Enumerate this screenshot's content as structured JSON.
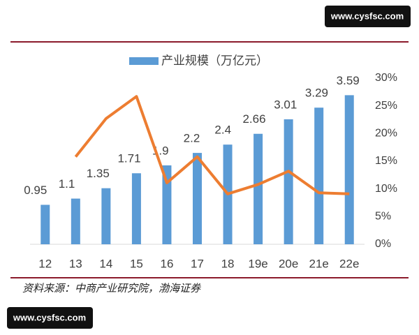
{
  "chart_data": {
    "type": "bar",
    "categories": [
      "12",
      "13",
      "14",
      "15",
      "16",
      "17",
      "18",
      "19e",
      "20e",
      "21e",
      "22e"
    ],
    "series": [
      {
        "name": "产业规模（万亿元）",
        "type": "bar",
        "color": "#5b9bd5",
        "values": [
          0.95,
          1.1,
          1.35,
          1.71,
          1.9,
          2.2,
          2.4,
          2.66,
          3.01,
          3.29,
          3.59
        ]
      },
      {
        "type": "line",
        "axis": "y2",
        "color": "#ed7d31",
        "values": [
          null,
          15.8,
          22.7,
          26.7,
          11.1,
          15.8,
          9.1,
          10.8,
          13.2,
          9.3,
          9.1
        ]
      }
    ],
    "ylim": [
      0,
      4
    ],
    "y2lim": [
      0,
      30
    ],
    "y2ticks": [
      {
        "value": 0,
        "label": "0%"
      },
      {
        "value": 5,
        "label": "5%"
      },
      {
        "value": 10,
        "label": "10%"
      },
      {
        "value": 15,
        "label": "15%"
      },
      {
        "value": 20,
        "label": "20%"
      },
      {
        "value": 25,
        "label": "25%"
      },
      {
        "value": 30,
        "label": "30%"
      }
    ],
    "legend": "top"
  },
  "source": "资料来源：中商产业研究院，渤海证券",
  "watermarks": [
    "www.cysfsc.com",
    "www.cysfsc.com"
  ]
}
